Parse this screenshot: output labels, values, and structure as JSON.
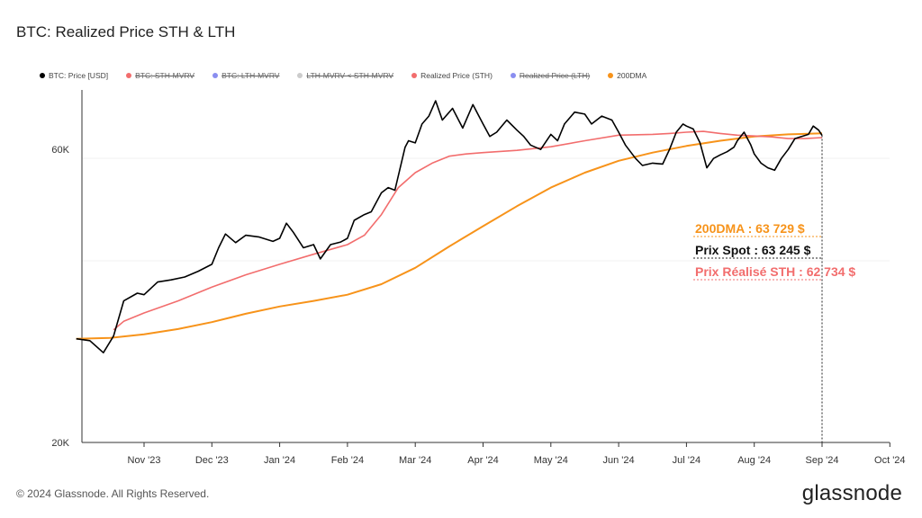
{
  "title": "BTC: Realized Price STH & LTH",
  "legend": [
    {
      "label": "BTC: Price [USD]",
      "color": "#000000",
      "enabled": true
    },
    {
      "label": "BTC: STH-MVRV",
      "color": "#f26d6d",
      "enabled": false
    },
    {
      "label": "BTC: LTH-MVRV",
      "color": "#8a8ef0",
      "enabled": false
    },
    {
      "label": "LTH-MVRV < STH-MVRV",
      "color": "#cccccc",
      "enabled": false
    },
    {
      "label": "Realized Price (STH)",
      "color": "#f26d6d",
      "enabled": true
    },
    {
      "label": "Realized Price (LTH)",
      "color": "#8a8ef0",
      "enabled": false
    },
    {
      "label": "200DMA",
      "color": "#f7931a",
      "enabled": true
    }
  ],
  "annotations": {
    "dma": "200DMA : 63 729 $",
    "spot": "Prix Spot : 63 245 $",
    "sth": "Prix Réalisé STH : 62 734 $"
  },
  "footer": {
    "copyright": "© 2024 Glassnode. All Rights Reserved.",
    "brand": "glassnode"
  },
  "chart_data": {
    "type": "line",
    "y_scale": "log",
    "ylim": [
      20000,
      75000
    ],
    "yticks": [
      {
        "label": "20K",
        "value": 20000
      },
      {
        "label": "60K",
        "value": 60000
      }
    ],
    "xticks": [
      "Nov '23",
      "Dec '23",
      "Jan '24",
      "Feb '24",
      "Mar '24",
      "Apr '24",
      "May '24",
      "Jun '24",
      "Jul '24",
      "Aug '24",
      "Sep '24",
      "Oct '24"
    ],
    "x_range": [
      -1.0,
      11.0
    ],
    "series": [
      {
        "name": "BTC: Price [USD]",
        "color": "#000000",
        "points": [
          [
            -1.0,
            29500
          ],
          [
            -0.8,
            29300
          ],
          [
            -0.6,
            28000
          ],
          [
            -0.45,
            29800
          ],
          [
            -0.3,
            34000
          ],
          [
            -0.1,
            35000
          ],
          [
            0.0,
            34800
          ],
          [
            0.2,
            36500
          ],
          [
            0.4,
            36800
          ],
          [
            0.6,
            37200
          ],
          [
            0.8,
            38000
          ],
          [
            1.0,
            39000
          ],
          [
            1.1,
            41500
          ],
          [
            1.2,
            43700
          ],
          [
            1.35,
            42300
          ],
          [
            1.5,
            43500
          ],
          [
            1.7,
            43200
          ],
          [
            1.9,
            42500
          ],
          [
            2.0,
            43000
          ],
          [
            2.1,
            45500
          ],
          [
            2.2,
            44000
          ],
          [
            2.35,
            41500
          ],
          [
            2.5,
            42000
          ],
          [
            2.6,
            39800
          ],
          [
            2.75,
            42000
          ],
          [
            2.9,
            42400
          ],
          [
            3.0,
            43000
          ],
          [
            3.1,
            46000
          ],
          [
            3.25,
            47000
          ],
          [
            3.35,
            47500
          ],
          [
            3.5,
            51000
          ],
          [
            3.6,
            52000
          ],
          [
            3.7,
            51500
          ],
          [
            3.85,
            60500
          ],
          [
            3.9,
            62000
          ],
          [
            4.0,
            61500
          ],
          [
            4.1,
            66000
          ],
          [
            4.2,
            68000
          ],
          [
            4.3,
            72000
          ],
          [
            4.4,
            67000
          ],
          [
            4.55,
            70000
          ],
          [
            4.7,
            65000
          ],
          [
            4.85,
            71000
          ],
          [
            5.0,
            66000
          ],
          [
            5.1,
            63000
          ],
          [
            5.2,
            64000
          ],
          [
            5.35,
            67000
          ],
          [
            5.5,
            64500
          ],
          [
            5.6,
            63000
          ],
          [
            5.7,
            61000
          ],
          [
            5.85,
            60000
          ],
          [
            6.0,
            63500
          ],
          [
            6.1,
            62000
          ],
          [
            6.2,
            66000
          ],
          [
            6.35,
            69000
          ],
          [
            6.5,
            68500
          ],
          [
            6.6,
            66000
          ],
          [
            6.75,
            68000
          ],
          [
            6.9,
            67000
          ],
          [
            7.0,
            64000
          ],
          [
            7.1,
            61000
          ],
          [
            7.25,
            58000
          ],
          [
            7.35,
            56500
          ],
          [
            7.5,
            57000
          ],
          [
            7.65,
            56800
          ],
          [
            7.75,
            60000
          ],
          [
            7.85,
            64000
          ],
          [
            7.95,
            66000
          ],
          [
            8.0,
            65500
          ],
          [
            8.1,
            64800
          ],
          [
            8.2,
            61500
          ],
          [
            8.3,
            56000
          ],
          [
            8.4,
            58000
          ],
          [
            8.5,
            58800
          ],
          [
            8.6,
            59500
          ],
          [
            8.7,
            60500
          ],
          [
            8.75,
            62000
          ],
          [
            8.85,
            64000
          ],
          [
            8.95,
            61000
          ],
          [
            9.0,
            59000
          ],
          [
            9.1,
            57000
          ],
          [
            9.2,
            56000
          ],
          [
            9.3,
            55500
          ],
          [
            9.4,
            58000
          ],
          [
            9.5,
            60000
          ],
          [
            9.6,
            62500
          ],
          [
            9.7,
            63000
          ],
          [
            9.8,
            63500
          ],
          [
            9.87,
            65500
          ],
          [
            9.95,
            64500
          ],
          [
            10.0,
            63245
          ]
        ]
      },
      {
        "name": "Realized Price (STH)",
        "color": "#f26d6d",
        "points": [
          [
            -0.45,
            30500
          ],
          [
            -0.3,
            31500
          ],
          [
            0.0,
            32500
          ],
          [
            0.5,
            34000
          ],
          [
            1.0,
            35800
          ],
          [
            1.5,
            37500
          ],
          [
            2.0,
            39000
          ],
          [
            2.5,
            40500
          ],
          [
            3.0,
            42000
          ],
          [
            3.25,
            43500
          ],
          [
            3.5,
            47000
          ],
          [
            3.75,
            52000
          ],
          [
            4.0,
            55000
          ],
          [
            4.25,
            57000
          ],
          [
            4.5,
            58500
          ],
          [
            4.75,
            59000
          ],
          [
            5.0,
            59300
          ],
          [
            5.5,
            59800
          ],
          [
            6.0,
            60600
          ],
          [
            6.5,
            62000
          ],
          [
            7.0,
            63300
          ],
          [
            7.5,
            63500
          ],
          [
            7.75,
            63700
          ],
          [
            8.0,
            64000
          ],
          [
            8.25,
            64200
          ],
          [
            8.5,
            63700
          ],
          [
            8.75,
            63300
          ],
          [
            9.0,
            63100
          ],
          [
            9.25,
            62900
          ],
          [
            9.5,
            62500
          ],
          [
            9.75,
            62500
          ],
          [
            10.0,
            62734
          ]
        ]
      },
      {
        "name": "200DMA",
        "color": "#f7931a",
        "points": [
          [
            -1.0,
            29500
          ],
          [
            -0.5,
            29600
          ],
          [
            0.0,
            30000
          ],
          [
            0.5,
            30600
          ],
          [
            1.0,
            31400
          ],
          [
            1.5,
            32400
          ],
          [
            2.0,
            33300
          ],
          [
            2.5,
            34000
          ],
          [
            3.0,
            34800
          ],
          [
            3.5,
            36200
          ],
          [
            4.0,
            38500
          ],
          [
            4.5,
            41700
          ],
          [
            5.0,
            45000
          ],
          [
            5.5,
            48500
          ],
          [
            6.0,
            52000
          ],
          [
            6.5,
            55000
          ],
          [
            7.0,
            57500
          ],
          [
            7.5,
            59300
          ],
          [
            8.0,
            60800
          ],
          [
            8.5,
            62000
          ],
          [
            9.0,
            63000
          ],
          [
            9.5,
            63500
          ],
          [
            10.0,
            63729
          ]
        ]
      }
    ]
  }
}
